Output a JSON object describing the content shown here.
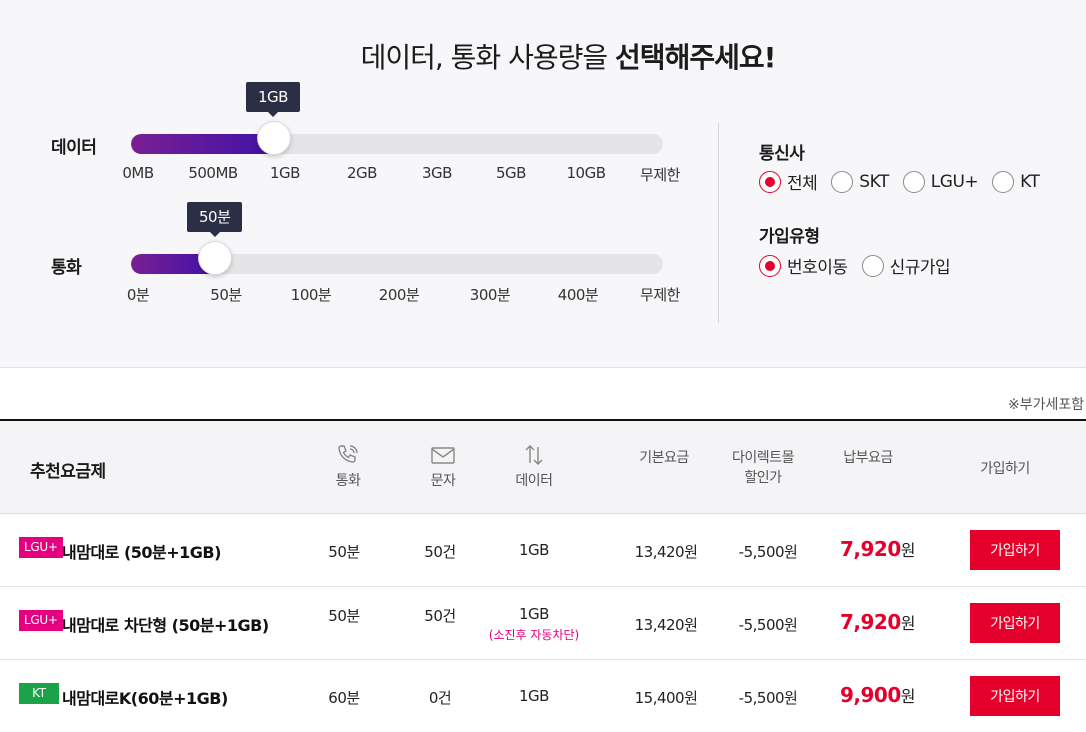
{
  "headline": {
    "normal": "데이터, 통화 사용량을",
    "bold": "선택해주세요!"
  },
  "data_slider": {
    "label": "데이터",
    "value_tip": "1GB",
    "ticks": [
      "0MB",
      "500MB",
      "1GB",
      "2GB",
      "3GB",
      "5GB",
      "10GB",
      "무제한"
    ]
  },
  "call_slider": {
    "label": "통화",
    "value_tip": "50분",
    "ticks": [
      "0분",
      "50분",
      "100분",
      "200분",
      "300분",
      "400분",
      "무제한"
    ]
  },
  "carrier": {
    "title": "통신사",
    "options": [
      "전체",
      "SKT",
      "LGU+",
      "KT"
    ],
    "selected": "전체"
  },
  "join_type": {
    "title": "가입유형",
    "options": [
      "번호이동",
      "신규가입"
    ],
    "selected": "번호이동"
  },
  "vat_note": "※부가세포함",
  "table": {
    "header": {
      "plan": "추천요금제",
      "call": "통화",
      "sms": "문자",
      "data": "데이터",
      "base_fee": "기본요금",
      "discount_line1": "다이렉트몰",
      "discount_line2": "할인가",
      "pay_fee": "납부요금",
      "join": "가입하기"
    },
    "rows": [
      {
        "carrier": "LGU+",
        "name": "내맘대로 (50분+1GB)",
        "call": "50분",
        "sms": "50건",
        "data": "1GB",
        "data_note": "",
        "base_fee": "13,420원",
        "discount": "-5,500원",
        "pay_amount": "7,920",
        "pay_unit": "원",
        "button": "가입하기"
      },
      {
        "carrier": "LGU+",
        "name": "내맘대로 차단형 (50분+1GB)",
        "call": "50분",
        "sms": "50건",
        "data": "1GB",
        "data_note": "(소진후 자동차단)",
        "base_fee": "13,420원",
        "discount": "-5,500원",
        "pay_amount": "7,920",
        "pay_unit": "원",
        "button": "가입하기"
      },
      {
        "carrier": "KT",
        "name": "내맘대로K(60분+1GB)",
        "call": "60분",
        "sms": "0건",
        "data": "1GB",
        "data_note": "",
        "base_fee": "15,400원",
        "discount": "-5,500원",
        "pay_amount": "9,900",
        "pay_unit": "원",
        "button": "가입하기"
      }
    ]
  },
  "colors": {
    "accent": "#e5002b",
    "lgu_badge": "#e4007f",
    "kt_badge": "#1ba34a",
    "slider_fill": "#4a12a4"
  }
}
